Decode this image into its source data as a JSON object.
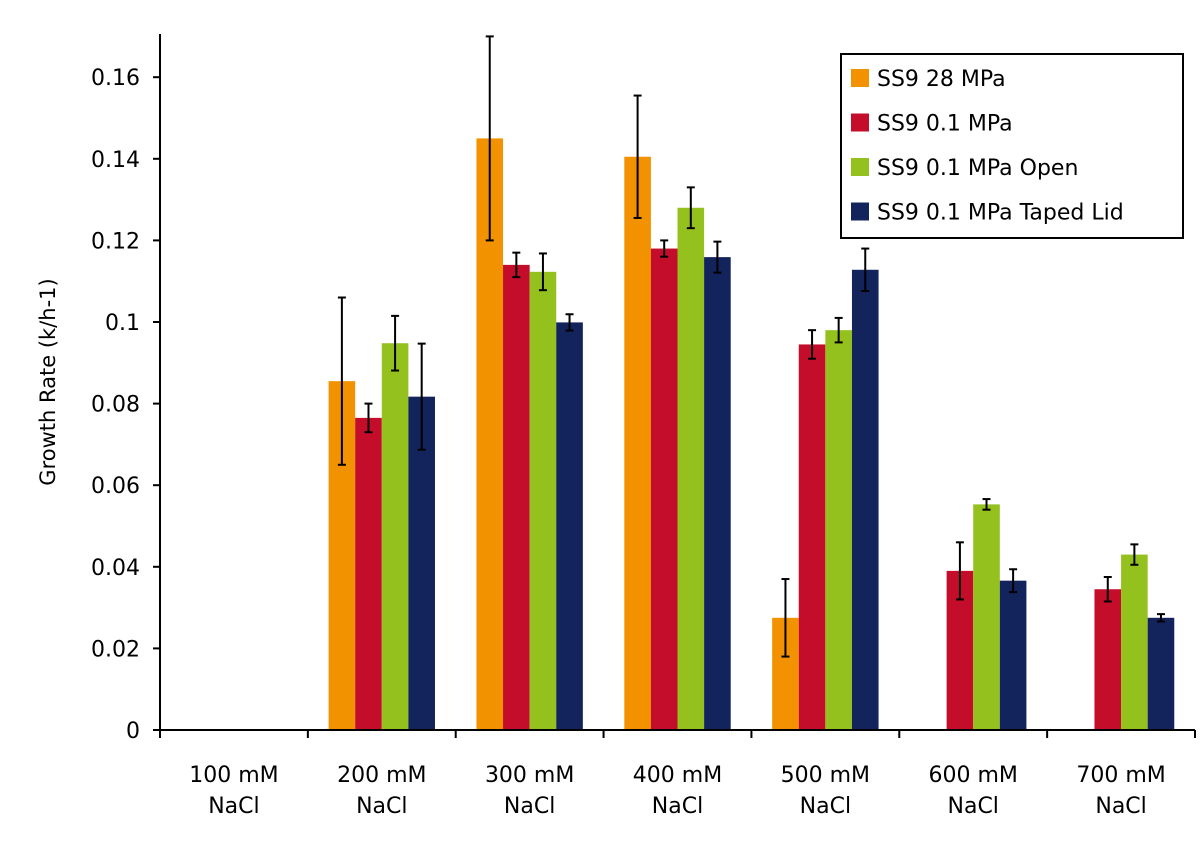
{
  "chart_data": {
    "type": "bar",
    "title": "",
    "xlabel": "",
    "ylabel": "Growth Rate (k/h-1)",
    "ylim": [
      0,
      0.17
    ],
    "yticks": [
      "0",
      "0.02",
      "0.04",
      "0.06",
      "0.08",
      "0.1",
      "0.12",
      "0.14",
      "0.16"
    ],
    "ytick_values": [
      0,
      0.02,
      0.04,
      0.06,
      0.08,
      0.1,
      0.12,
      0.14,
      0.16
    ],
    "grid": false,
    "legend_position": "top-right",
    "categories": [
      [
        "100 mM",
        "NaCl"
      ],
      [
        "200 mM",
        "NaCl"
      ],
      [
        "300 mM",
        "NaCl"
      ],
      [
        "400 mM",
        "NaCl"
      ],
      [
        "500 mM",
        "NaCl"
      ],
      [
        "600 mM",
        "NaCl"
      ],
      [
        "700 mM",
        "NaCl"
      ]
    ],
    "series": [
      {
        "name": "SS9 28 MPa",
        "color": "#f39200",
        "values": [
          null,
          0.0855,
          0.145,
          0.1405,
          0.0275,
          null,
          null
        ],
        "errors": [
          null,
          0.0205,
          0.025,
          0.015,
          0.0095,
          null,
          null
        ]
      },
      {
        "name": "SS9 0.1 MPa",
        "color": "#c30d2b",
        "values": [
          null,
          0.0765,
          0.114,
          0.118,
          0.0945,
          0.039,
          0.0345
        ],
        "errors": [
          null,
          0.0035,
          0.003,
          0.002,
          0.0035,
          0.007,
          0.003
        ]
      },
      {
        "name": "SS9 0.1 MPa Open",
        "color": "#95c11f",
        "values": [
          null,
          0.0948,
          0.1123,
          0.128,
          0.098,
          0.0553,
          0.043
        ],
        "errors": [
          null,
          0.0067,
          0.0045,
          0.005,
          0.003,
          0.0013,
          0.0025
        ]
      },
      {
        "name": "SS9 0.1 MPa Taped Lid",
        "color": "#13235b",
        "values": [
          null,
          0.0817,
          0.0999,
          0.1159,
          0.1128,
          0.0366,
          0.0275
        ],
        "errors": [
          null,
          0.013,
          0.002,
          0.0038,
          0.0052,
          0.0028,
          0.0009
        ]
      }
    ]
  }
}
